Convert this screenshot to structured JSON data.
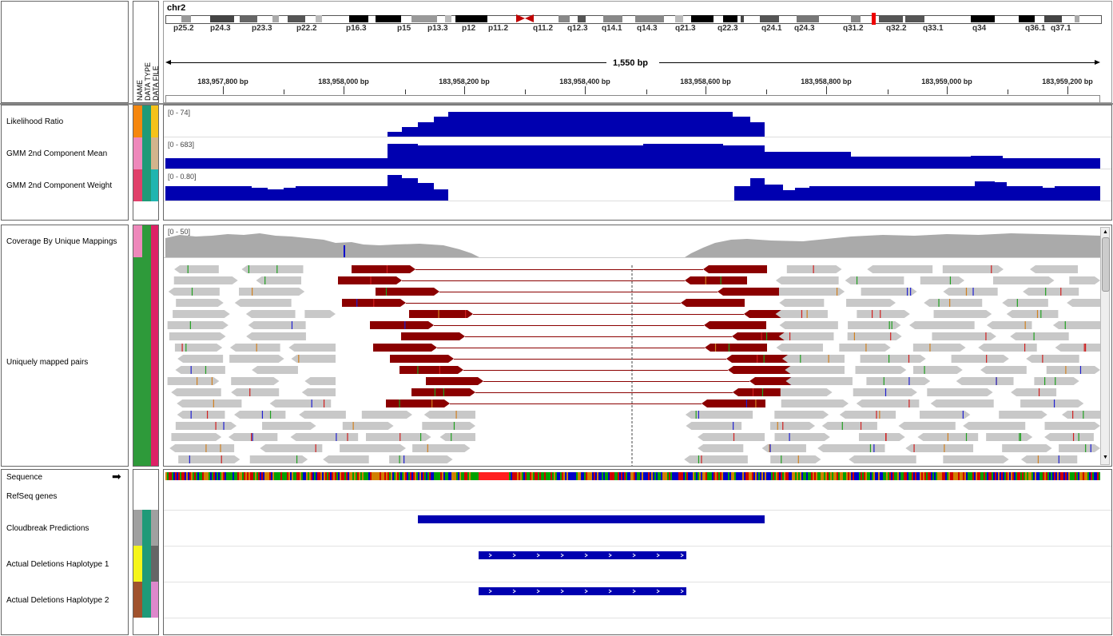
{
  "locus": {
    "chromosome": "chr2",
    "span": "1,550 bp",
    "band_labels": [
      "p25.2",
      "p24.3",
      "p23.3",
      "p22.2",
      "p16.3",
      "p15",
      "p13.3",
      "p12",
      "p11.2",
      "q11.2",
      "q12.3",
      "q14.1",
      "q14.3",
      "q21.3",
      "q22.3",
      "q24.1",
      "q24.3",
      "q31.2",
      "q32.2",
      "q33.1",
      "q34",
      "q36.1",
      "q37.1"
    ],
    "ticks": [
      "183,957,800 bp",
      "183,958,000 bp",
      "183,958,200 bp",
      "183,958,400 bp",
      "183,958,600 bp",
      "183,958,800 bp",
      "183,959,000 bp",
      "183,959,200 bp"
    ]
  },
  "attribute_headers": [
    "NAME",
    "DATA TYPE",
    "DATA FILE"
  ],
  "data_panel": {
    "tracks": [
      {
        "name": "Likelihood Ratio",
        "range": "[0 - 74]"
      },
      {
        "name": "GMM 2nd Component Mean",
        "range": "[0 - 683]"
      },
      {
        "name": "GMM 2nd Component Weight",
        "range": "[0 - 0.80]"
      }
    ]
  },
  "alignment_panel": {
    "coverage": {
      "name": "Coverage By Unique Mappings",
      "range": "[0 - 50]"
    },
    "reads": {
      "name": "Uniquely mapped pairs"
    }
  },
  "feature_panel": {
    "sequence": {
      "name": "Sequence",
      "arrow": "➡"
    },
    "refseq": {
      "name": "RefSeq genes"
    },
    "cloudbreak": {
      "name": "Cloudbreak Predictions"
    },
    "hap1": {
      "name": "Actual Deletions Haplotype 1"
    },
    "hap2": {
      "name": "Actual Deletions Haplotype 2"
    }
  },
  "colors": {
    "track_blue": "#0000b0",
    "discordant_read": "#8b0000",
    "read_gray": "#c8c8c8",
    "coverage_gray": "#aaaaaa"
  }
}
